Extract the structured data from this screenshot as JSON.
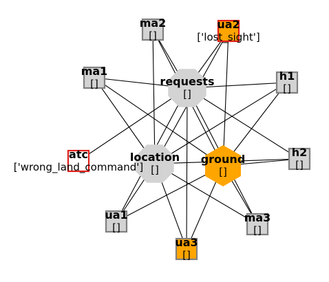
{
  "colors": {
    "edge": "#000000",
    "node_gray": "#d3d3d3",
    "node_orange": "#ffa500",
    "border_gray": "#808080",
    "border_red": "#e0201b"
  },
  "nodes": [
    {
      "id": "requests",
      "label": "requests",
      "status": "[]",
      "shape": "octagon",
      "fill": "gray"
    },
    {
      "id": "location",
      "label": "location",
      "status": "[]",
      "shape": "octagon",
      "fill": "gray"
    },
    {
      "id": "ground",
      "label": "ground",
      "status": "[]",
      "shape": "hexagon",
      "fill": "orange"
    },
    {
      "id": "ma2",
      "label": "ma2",
      "status": "[]",
      "shape": "square",
      "fill": "gray",
      "border": "gray"
    },
    {
      "id": "ua2",
      "label": "ua2",
      "status": "['lost_sight']",
      "shape": "square",
      "fill": "orange",
      "border": "red"
    },
    {
      "id": "ma1",
      "label": "ma1",
      "status": "[]",
      "shape": "square",
      "fill": "gray",
      "border": "gray"
    },
    {
      "id": "h1",
      "label": "h1",
      "status": "[]",
      "shape": "square",
      "fill": "gray",
      "border": "gray"
    },
    {
      "id": "atc",
      "label": "atc",
      "status": "['wrong_land_command']",
      "shape": "square",
      "fill": "white",
      "border": "red"
    },
    {
      "id": "h2",
      "label": "h2",
      "status": "[]",
      "shape": "square",
      "fill": "gray",
      "border": "gray"
    },
    {
      "id": "ua1",
      "label": "ua1",
      "status": "[]",
      "shape": "square",
      "fill": "gray",
      "border": "gray"
    },
    {
      "id": "ma3",
      "label": "ma3",
      "status": "[]",
      "shape": "square",
      "fill": "gray",
      "border": "gray"
    },
    {
      "id": "ua3",
      "label": "ua3",
      "status": "[]",
      "shape": "square",
      "fill": "orange",
      "border": "gray"
    }
  ],
  "edges": [
    [
      "ma2",
      "requests"
    ],
    [
      "ma2",
      "location"
    ],
    [
      "ma2",
      "ground"
    ],
    [
      "ua2",
      "requests"
    ],
    [
      "ua2",
      "location"
    ],
    [
      "ua2",
      "ground"
    ],
    [
      "ma1",
      "requests"
    ],
    [
      "ma1",
      "location"
    ],
    [
      "ma1",
      "ground"
    ],
    [
      "h1",
      "requests"
    ],
    [
      "h1",
      "location"
    ],
    [
      "h1",
      "ground"
    ],
    [
      "atc",
      "requests"
    ],
    [
      "h2",
      "requests"
    ],
    [
      "h2",
      "location"
    ],
    [
      "h2",
      "ground"
    ],
    [
      "ua1",
      "requests"
    ],
    [
      "ua1",
      "location"
    ],
    [
      "ua1",
      "ground"
    ],
    [
      "ma3",
      "requests"
    ],
    [
      "ma3",
      "location"
    ],
    [
      "ma3",
      "ground"
    ],
    [
      "ua3",
      "requests"
    ],
    [
      "ua3",
      "location"
    ],
    [
      "ua3",
      "ground"
    ]
  ]
}
